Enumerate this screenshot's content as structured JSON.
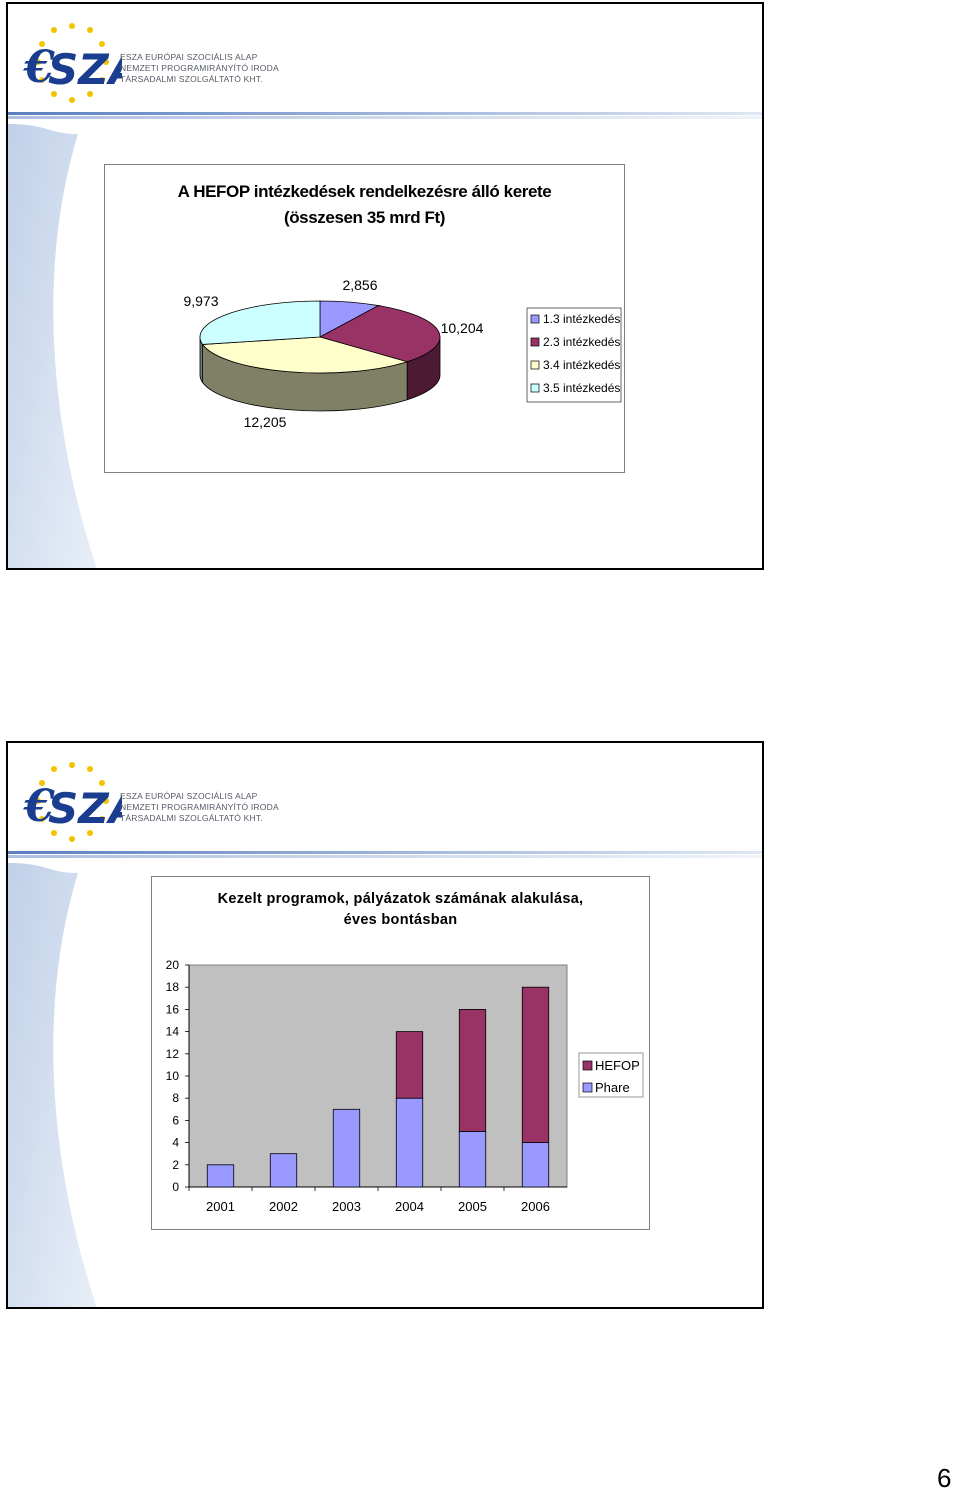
{
  "logo": {
    "lines": [
      "ESZA EURÓPAI SZOCIÁLIS ALAP",
      "NEMZETI PROGRAMIRÁNYÍTÓ IRODA",
      "TÁRSADALMI SZOLGÁLTATÓ KHT."
    ]
  },
  "colors": {
    "header_gradient_start": "#5a7fc0",
    "header_gradient_end": "#d8e2f2",
    "slide_side_band": "#c9d8ee"
  },
  "page_number": "6",
  "chart_data": [
    {
      "type": "pie",
      "title_lines": [
        "A HEFOP intézkedések rendelkezésre álló kerete",
        "(összesen 35 mrd Ft)"
      ],
      "labels": [
        "1.3 intézkedés",
        "2.3 intézkedés",
        "3.4 intézkedés",
        "3.5 intézkedés"
      ],
      "values": [
        2.856,
        10.204,
        12.205,
        9.973
      ],
      "value_labels": [
        "2,856",
        "10,204",
        "12,205",
        "9,973"
      ],
      "colors": [
        "#9999ff",
        "#993366",
        "#ffffcc",
        "#ccffff"
      ],
      "legend_position": "right"
    },
    {
      "type": "bar",
      "stacked": true,
      "title_lines": [
        "Kezelt programok, pályázatok  számának alakulása,",
        "éves bontásban"
      ],
      "categories": [
        "2001",
        "2002",
        "2003",
        "2004",
        "2005",
        "2006"
      ],
      "series": [
        {
          "name": "Phare",
          "color": "#9999ff",
          "values": [
            2,
            3,
            7,
            8,
            5,
            4
          ]
        },
        {
          "name": "HEFOP",
          "color": "#993366",
          "values": [
            0,
            0,
            0,
            6,
            11,
            14
          ]
        }
      ],
      "legend_order": [
        "HEFOP",
        "Phare"
      ],
      "ylim": [
        0,
        20
      ],
      "yticks": [
        0,
        2,
        4,
        6,
        8,
        10,
        12,
        14,
        16,
        18,
        20
      ],
      "plot_background": "#c0c0c0",
      "grid": false,
      "legend_position": "right"
    }
  ]
}
